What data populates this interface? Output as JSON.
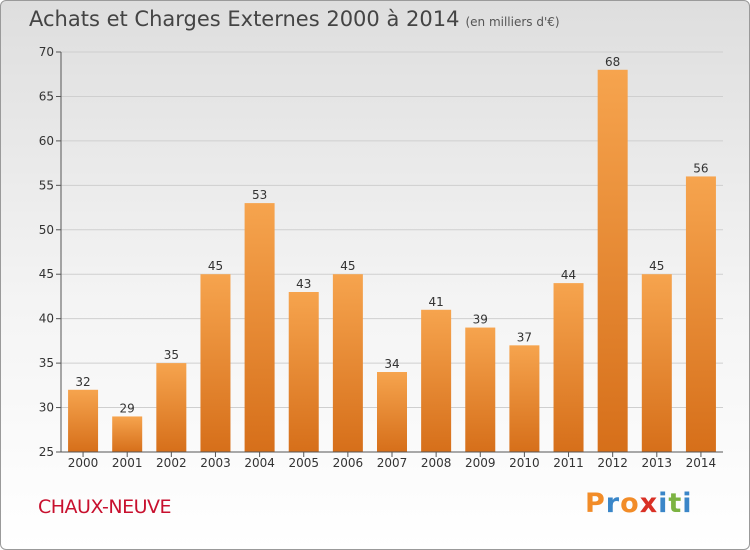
{
  "header": {
    "title": "Achats et Charges Externes 2000 à 2014",
    "subtitle": "(en milliers d'€)"
  },
  "footer": {
    "place": "CHAUX-NEUVE",
    "brand": "Proxiti",
    "brand_colors": [
      "#f28c28",
      "#3a86c8",
      "#f28c28",
      "#d93025",
      "#3a86c8",
      "#7cb342",
      "#3a86c8"
    ]
  },
  "colors": {
    "bar_top": "#f6a44e",
    "bar_bottom": "#d66f1a",
    "grid": "#cfcfcf",
    "axis_text": "#333333"
  },
  "chart_data": {
    "type": "bar",
    "categories": [
      "2000",
      "2001",
      "2002",
      "2003",
      "2004",
      "2005",
      "2006",
      "2007",
      "2008",
      "2009",
      "2010",
      "2011",
      "2012",
      "2013",
      "2014"
    ],
    "values": [
      32,
      29,
      35,
      45,
      53,
      43,
      45,
      34,
      41,
      39,
      37,
      44,
      68,
      45,
      56
    ],
    "ylim": [
      25,
      70
    ],
    "yticks": [
      25,
      30,
      35,
      40,
      45,
      50,
      55,
      60,
      65,
      70
    ],
    "grid": true,
    "data_labels": true
  }
}
